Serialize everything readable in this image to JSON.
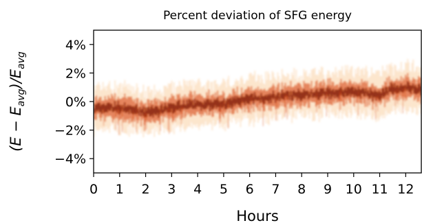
{
  "chart_data": {
    "type": "heatmap",
    "title": "Percent deviation of SFG energy",
    "xlabel": "Hours",
    "ylabel_parts": {
      "open": "(",
      "E1": "E",
      "minus": " − ",
      "E2": "E",
      "sub2": "avg",
      "close": ")/",
      "E3": "E",
      "sub3": "avg"
    },
    "xlim": [
      0,
      12.6
    ],
    "ylim": [
      -5,
      5
    ],
    "x_ticks": [
      0,
      1,
      2,
      3,
      4,
      5,
      6,
      7,
      8,
      9,
      10,
      11,
      12
    ],
    "x_tick_labels": [
      "0",
      "1",
      "2",
      "3",
      "4",
      "5",
      "6",
      "7",
      "8",
      "9",
      "10",
      "11",
      "12"
    ],
    "y_ticks": [
      4,
      2,
      0,
      -2,
      -4
    ],
    "y_tick_labels": [
      "4%",
      "2%",
      "0%",
      "−2%",
      "−4%"
    ],
    "colormap": "hot_r",
    "colors": {
      "dark": "#7a1a08",
      "mid": "#d5400e",
      "light": "#f6b36a"
    },
    "trend": {
      "hours": [
        0,
        1,
        2,
        2.5,
        3,
        4,
        5,
        6,
        7,
        8,
        9,
        10,
        10.5,
        11,
        11.5,
        12,
        12.6
      ],
      "deviation_percent": [
        -0.5,
        -0.4,
        -0.8,
        -0.7,
        -0.4,
        -0.2,
        -0.2,
        0.2,
        0.3,
        0.5,
        0.6,
        0.7,
        0.6,
        0.4,
        0.9,
        1.0,
        0.9
      ]
    },
    "spread_percent": 0.6
  }
}
